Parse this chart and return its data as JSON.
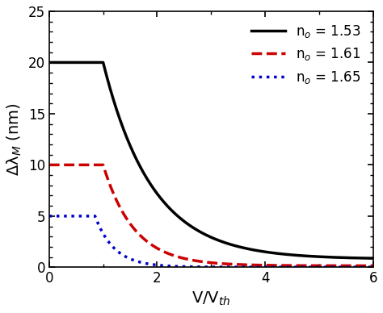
{
  "title": "",
  "xlabel": "V/V$_{th}$",
  "ylabel": "Δλ$_M$ (nm)",
  "xlim": [
    0,
    6
  ],
  "ylim": [
    0,
    25
  ],
  "xticks": [
    0,
    2,
    4,
    6
  ],
  "yticks": [
    0,
    5,
    10,
    15,
    20,
    25
  ],
  "curves": [
    {
      "label": "n$_o$ = 1.53",
      "color": "#000000",
      "linestyle": "solid",
      "linewidth": 2.5,
      "flat_val": 20.0,
      "flat_end": 1.0,
      "decay_start": 1.0,
      "decay_end": 6.0,
      "min_val": 0.8
    },
    {
      "label": "n$_o$ = 1.61",
      "color": "#cc0000",
      "linestyle": "dashed",
      "linewidth": 2.5,
      "flat_val": 10.0,
      "flat_end": 1.0,
      "decay_start": 1.0,
      "decay_end": 6.0,
      "min_val": 0.3
    },
    {
      "label": "n$_o$ = 1.65",
      "color": "#0000cc",
      "linestyle": "dotted",
      "linewidth": 2.5,
      "flat_val": 5.0,
      "flat_end": 0.85,
      "decay_start": 0.85,
      "decay_end": 6.0,
      "min_val": 0.05
    }
  ],
  "legend_loc": "upper right",
  "background_color": "#ffffff",
  "figsize": [
    4.74,
    3.88
  ],
  "dpi": 100
}
